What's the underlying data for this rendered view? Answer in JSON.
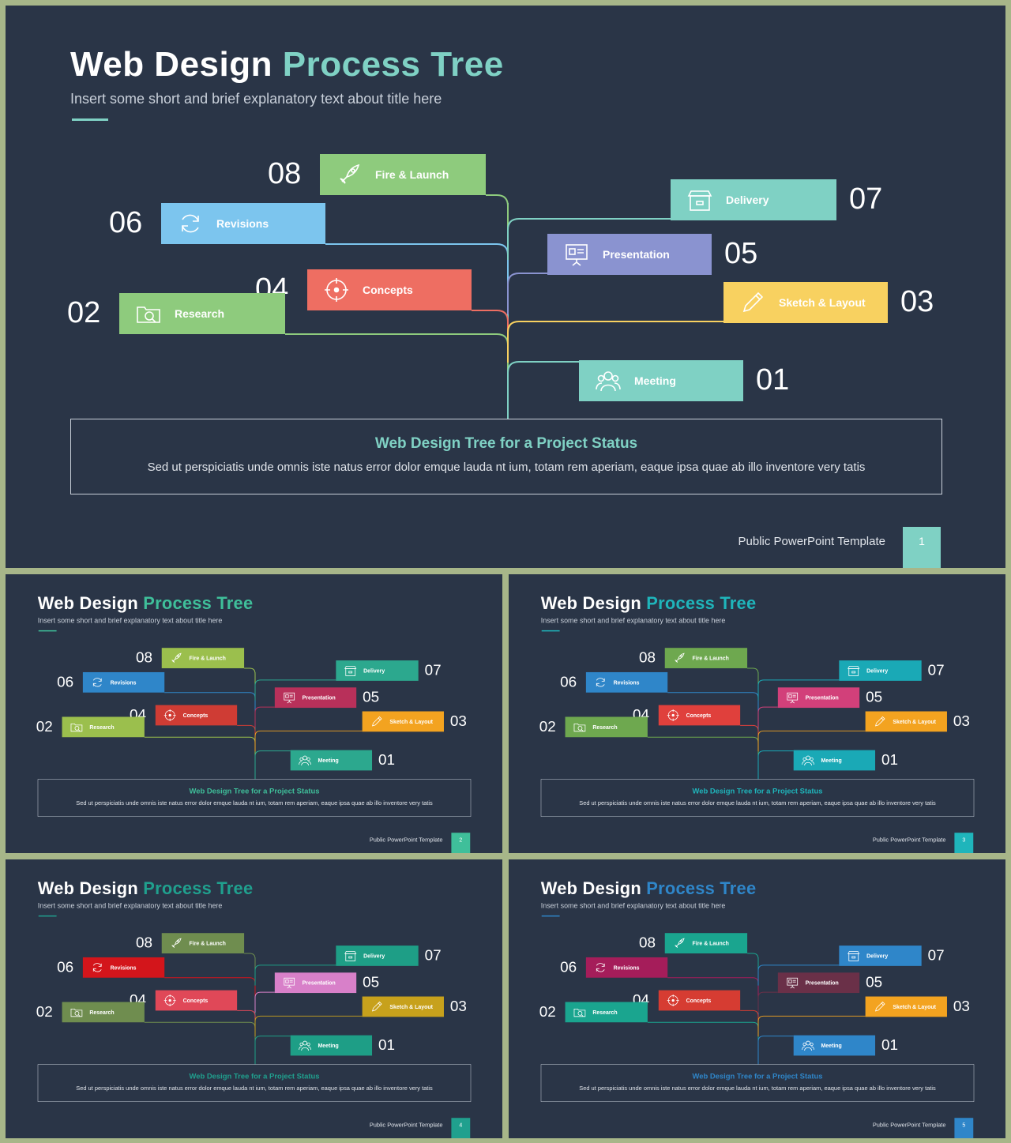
{
  "slides_common": {
    "title_main": "Web Design",
    "title_accent": "Process Tree",
    "subtitle": "Insert some short and brief explanatory text about title here",
    "info_title": "Web Design Tree for a Project Status",
    "info_text": "Sed ut perspiciatis unde omnis iste natus error dolor emque lauda nt ium, totam rem aperiam, eaque ipsa quae ab illo inventore very tatis",
    "footer": "Public PowerPoint Template",
    "branches": [
      {
        "num": "08",
        "label": "Fire & Launch",
        "icon": "rocket-icon"
      },
      {
        "num": "06",
        "label": "Revisions",
        "icon": "refresh-icon"
      },
      {
        "num": "04",
        "label": "Concepts",
        "icon": "target-icon"
      },
      {
        "num": "02",
        "label": "Research",
        "icon": "folder-search-icon"
      },
      {
        "num": "07",
        "label": "Delivery",
        "icon": "package-icon"
      },
      {
        "num": "05",
        "label": "Presentation",
        "icon": "presentation-board-icon"
      },
      {
        "num": "03",
        "label": "Sketch & Layout",
        "icon": "pencil-icon"
      },
      {
        "num": "01",
        "label": "Meeting",
        "icon": "people-icon"
      }
    ]
  },
  "slides": [
    {
      "page": "1",
      "accent": "#7fd1c4",
      "colors": {
        "08": "#8ecb7d",
        "06": "#7cc5ee",
        "04": "#ee6e62",
        "02": "#8ecb7d",
        "07": "#7fd1c4",
        "05": "#8a93d0",
        "03": "#f8d160",
        "01": "#7fd1c4"
      }
    },
    {
      "page": "2",
      "accent": "#3fbf9a",
      "colors": {
        "08": "#9bbf4d",
        "06": "#2f86c9",
        "04": "#cf3c34",
        "02": "#9bbf4d",
        "07": "#2ca88e",
        "05": "#b8305a",
        "03": "#f3a320",
        "01": "#2ca88e"
      }
    },
    {
      "page": "3",
      "accent": "#1fb5bb",
      "colors": {
        "08": "#6ea84f",
        "06": "#2f86c9",
        "04": "#e0403c",
        "02": "#6ea84f",
        "07": "#1aa9b6",
        "05": "#d2407a",
        "03": "#f3a320",
        "01": "#1aa9b6"
      }
    },
    {
      "page": "4",
      "accent": "#20a08e",
      "colors": {
        "08": "#6f8d4f",
        "06": "#d3151b",
        "04": "#e04858",
        "02": "#6f8d4f",
        "07": "#1e9e86",
        "05": "#d880c9",
        "03": "#c7a11c",
        "01": "#1e9e86"
      }
    },
    {
      "page": "5",
      "accent": "#2f86c9",
      "colors": {
        "08": "#1aa58f",
        "06": "#a51d5a",
        "04": "#d63c32",
        "02": "#1aa58f",
        "07": "#2f86c9",
        "05": "#6a3048",
        "03": "#f3a320",
        "01": "#2f86c9"
      }
    }
  ]
}
